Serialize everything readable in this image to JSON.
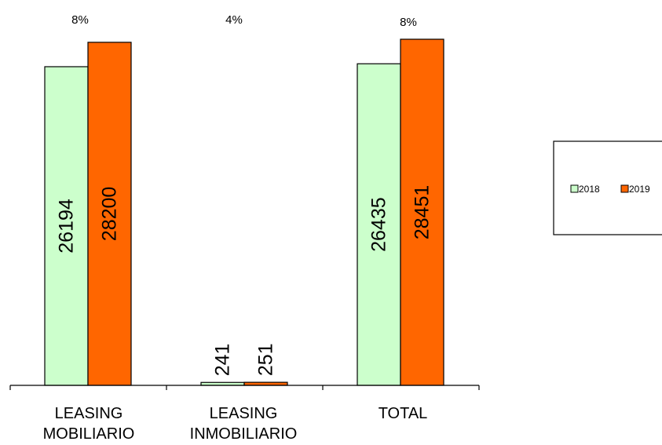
{
  "chart_data": {
    "type": "bar",
    "categories": [
      [
        "LEASING",
        "MOBILIARIO"
      ],
      [
        "LEASING",
        "INMOBILIARIO"
      ],
      [
        "TOTAL"
      ]
    ],
    "series": [
      {
        "name": "2018",
        "values": [
          26194,
          241,
          26435
        ],
        "color": "#ccffcc"
      },
      {
        "name": "2019",
        "values": [
          28200,
          251,
          28451
        ],
        "color": "#ff6600"
      }
    ],
    "growth_labels": [
      "8%",
      "4%",
      "8%"
    ],
    "ylim": [
      0,
      30000
    ],
    "legend_position": "right",
    "grid": false,
    "title": "",
    "xlabel": "",
    "ylabel": ""
  }
}
